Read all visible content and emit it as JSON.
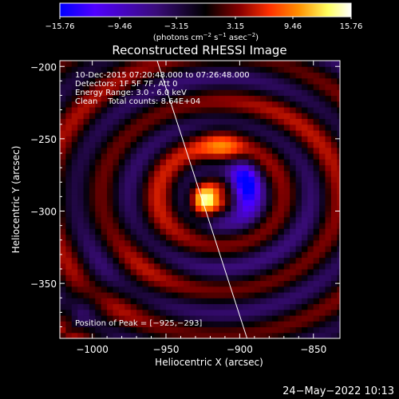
{
  "chart_data": {
    "type": "heatmap",
    "title": "Reconstructed RHESSI Image",
    "xlabel": "Heliocentric X (arcsec)",
    "ylabel": "Heliocentric Y (arcsec)",
    "xlim": [
      -1022,
      -832
    ],
    "ylim": [
      -388,
      -196
    ],
    "x_ticks": [
      -1000,
      -950,
      -900,
      -850
    ],
    "y_ticks": [
      -200,
      -250,
      -300,
      -350
    ],
    "x_tick_labels": [
      "−1000",
      "−950",
      "−900",
      "−850"
    ],
    "y_tick_labels": [
      "−200",
      "−250",
      "−300",
      "−350"
    ],
    "colorbar": {
      "min": -15.76,
      "max": 15.76,
      "tick_labels": [
        "−15.76",
        "−9.46",
        "−3.15",
        "3.15",
        "9.46",
        "15.76"
      ],
      "unit_label_parts": [
        "(photons cm",
        "−2",
        " s",
        "−1",
        " asec",
        "−2",
        ")"
      ]
    },
    "annotations": [
      "10-Dec-2015 07:20:48.000 to 07:26:48.000",
      "Detectors: 1F 5F 7F, Att 0",
      "Energy Range: 3.0 - 6.0 keV",
      "Clean    Total counts: 8.64E+04"
    ],
    "peak": {
      "label": "Position of Peak = [−925,−293]",
      "x": -925,
      "y": -293
    },
    "limb_line": [
      [
        -956,
        -196
      ],
      [
        -895,
        -388
      ]
    ],
    "features": {
      "negative_core": {
        "x": -897,
        "y": -283,
        "value": -14.5
      },
      "ring_spacing_arcsec": 34
    }
  },
  "footer": {
    "date": "24−May−2022 10:13"
  },
  "colors": {
    "background": "#000000",
    "text": "#ffffff",
    "colormap": [
      "#0000ff",
      "#5000ff",
      "#3a0c7a",
      "#000000",
      "#8a0000",
      "#ff3000",
      "#ff9000",
      "#ffff60",
      "#ffffff"
    ]
  }
}
